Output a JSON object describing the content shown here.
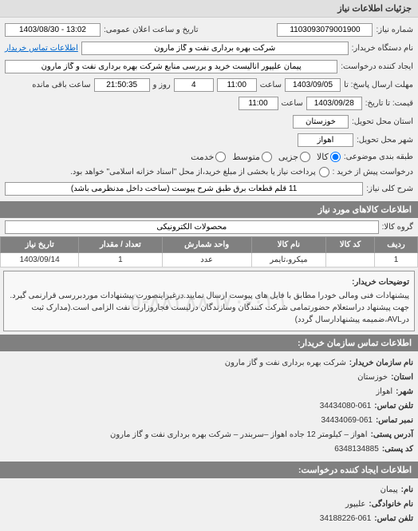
{
  "page_title": "جزئیات اطلاعات نیاز",
  "form": {
    "request_number_label": "شماره نیاز:",
    "request_number": "1103093079001900",
    "announce_date_label": "تاریخ و ساعت اعلان عمومی:",
    "announce_date": "13:02 - 1403/08/30",
    "buyer_org_label": "نام دستگاه خریدار:",
    "buyer_org": "شرکت بهره برداری نفت و گاز مارون",
    "buyer_contact_link": "اطلاعات تماس خریدار",
    "creator_label": "ایجاد کننده درخواست:",
    "creator": "پیمان علیپور آنالیست خرید و بررسی منابع شرکت بهره برداری نفت و گاز مارون",
    "deadline_label": "مهلت ارسال پاسخ: تا",
    "deadline_date": "1403/09/05",
    "time_label": "ساعت",
    "deadline_time": "11:00",
    "day_label": "روز و",
    "days_remaining": "4",
    "remaining_time": "21:50:35",
    "remaining_suffix": "ساعت باقی مانده",
    "validity_label": "قیمت: تا تاریخ:",
    "validity_date": "1403/09/28",
    "validity_time": "11:00",
    "delivery_province_label": "استان محل تحویل:",
    "delivery_province": "خوزستان",
    "delivery_city_label": "شهر محل تحویل:",
    "delivery_city": "اهواز",
    "category_label": "طبقه بندی موضوعی:",
    "category_options": {
      "goods": "کالا",
      "service": "خدمت",
      "partial": "جزیی"
    },
    "prepayment_label": "پرداخت پیش از ارسال توسط تامین کننده",
    "partial_label": "جزیی",
    "medium_label": "متوسط",
    "request_chance_label": "درخواست پیش از خرید :",
    "prepayment_note": "پرداخت نیاز یا بخشی از مبلغ خرید،از محل \"اسناد خزانه اسلامی\" خواهد بود.",
    "main_desc_label": "شرح کلی نیاز:",
    "main_desc": "11 قلم قطعات برق طبق شرح پیوست (ساخت داخل مدنظرمی باشد)"
  },
  "goods_section_title": "اطلاعات کالاهای مورد نیاز",
  "goods_filter": {
    "label": "گروه کالا:",
    "value": "محصولات الکترونیکی"
  },
  "table": {
    "columns": [
      "ردیف",
      "کد کالا",
      "نام کالا",
      "واحد شمارش",
      "تعداد / مقدار",
      "تاریخ نیاز"
    ],
    "rows": [
      [
        "1",
        "",
        "میکرو،تایمر",
        "عدد",
        "1",
        "1403/09/14"
      ]
    ]
  },
  "buyer_notes": {
    "label": "توضیحات خریدار:",
    "text": "پیشنهادات فنی ومالی خودرا مطابق با فایل های پیوست ارسال نمایید.درغیراینصورت پیشنهادات موردبررسی قرارنمی گیرد. جهت پیشنهاد دراستعلام حضورتمامی شرکت کنندگان وسازندگان درلیست فجاروزارت نفت الزامی است.(مدارک ثبت درAVL،ضمیمه پیشنهادارسال گردد)"
  },
  "watermark_text": "٠٢١-٨٨٣٨٨٦٧٠-٥",
  "contact_section_title": "اطلاعات تماس سازمان خریدار:",
  "contact": {
    "org_name_label": "نام سازمان خریدار:",
    "org_name": "شرکت بهره برداری نفت و گاز مارون",
    "province_label": "استان:",
    "province": "خوزستان",
    "city_label": "شهر:",
    "city": "اهواز",
    "phone_label": "تلفن تماس:",
    "phone": "34434080-061",
    "fax_label": "نمبر تماس:",
    "fax": "34434069-061",
    "address_label": "آدرس پستی:",
    "address": "اهواز – کیلومتر 12 جاده اهواز –سربندر – شرکت بهره برداری نفت و گاز مارون",
    "postal_label": "کد پستی:",
    "postal": "6348134885"
  },
  "creator_contact_title": "اطلاعات ایجاد کننده درخواست:",
  "creator_contact": {
    "name_label": "نام:",
    "name": "پیمان",
    "family_label": "نام خانوادگی:",
    "family": "علیپور",
    "phone_label": "تلفن تماس:",
    "phone": "34188226-061"
  }
}
